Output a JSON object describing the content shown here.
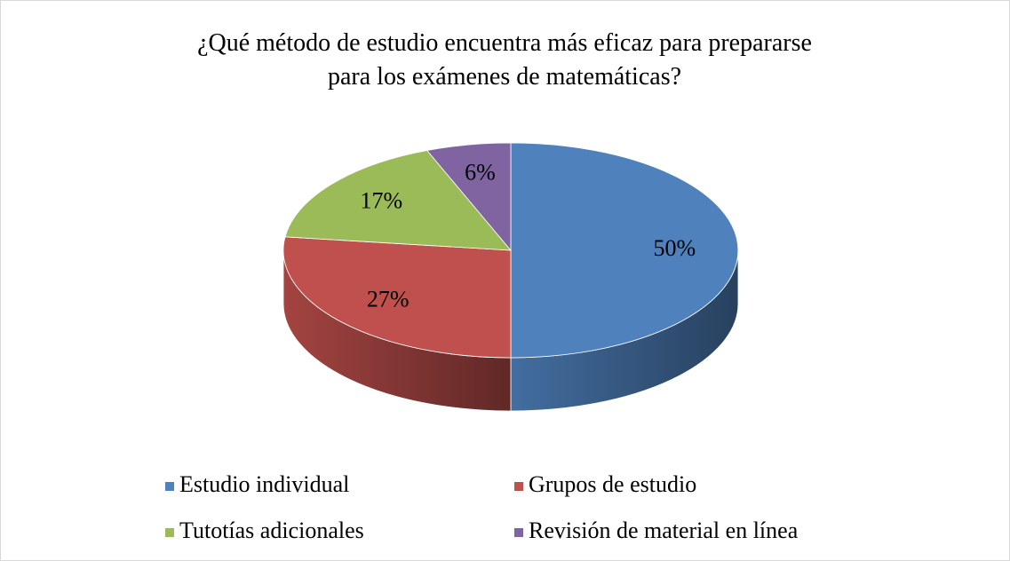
{
  "chart_data": {
    "type": "pie",
    "title": "¿Qué método de estudio encuentra más eficaz para prepararse para los exámenes de matemáticas?",
    "categories": [
      "Estudio individual",
      "Grupos de estudio",
      "Tutotías adicionales",
      "Revisión de material en línea"
    ],
    "values": [
      50,
      27,
      17,
      6
    ],
    "value_labels": [
      "50%",
      "27%",
      "17%",
      "6%"
    ],
    "colors": [
      "#4f81bd",
      "#c0504d",
      "#9bbb59",
      "#8064a2"
    ],
    "legend": "bottom",
    "three_d": true
  }
}
